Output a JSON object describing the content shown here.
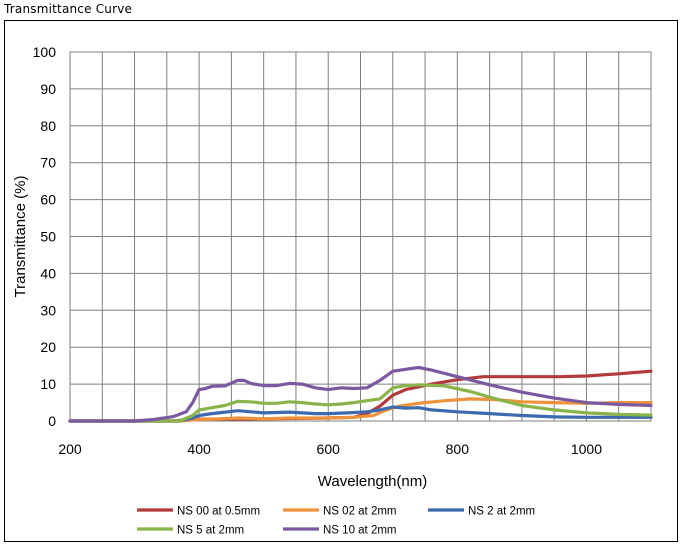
{
  "page_title": "Transmittance Curve",
  "chart_data": {
    "type": "line",
    "title": "",
    "xlabel": "Wavelength(nm)",
    "ylabel": "Transmittance (%)",
    "xlim": [
      200,
      1100
    ],
    "ylim": [
      0,
      100
    ],
    "xticks": [
      200,
      400,
      600,
      800,
      1000
    ],
    "yticks": [
      0,
      10,
      20,
      30,
      40,
      50,
      60,
      70,
      80,
      90,
      100
    ],
    "x_grid_step": 50,
    "grid": true,
    "legend_position": "bottom",
    "series": [
      {
        "name": "NS 00 at 0.5mm",
        "color": "#b23a3a",
        "points": [
          [
            200,
            0
          ],
          [
            360,
            0
          ],
          [
            380,
            0.3
          ],
          [
            400,
            0.5
          ],
          [
            500,
            0.6
          ],
          [
            600,
            0.8
          ],
          [
            640,
            1
          ],
          [
            660,
            2
          ],
          [
            680,
            4
          ],
          [
            700,
            7
          ],
          [
            720,
            8.5
          ],
          [
            760,
            10
          ],
          [
            800,
            11.2
          ],
          [
            840,
            12
          ],
          [
            900,
            12
          ],
          [
            960,
            12
          ],
          [
            1000,
            12.2
          ],
          [
            1050,
            12.8
          ],
          [
            1100,
            13.5
          ]
        ]
      },
      {
        "name": "NS 02 at 2mm",
        "color": "#f0913c",
        "points": [
          [
            200,
            0
          ],
          [
            370,
            0
          ],
          [
            390,
            0.3
          ],
          [
            420,
            0.5
          ],
          [
            460,
            0.8
          ],
          [
            500,
            0.6
          ],
          [
            540,
            0.8
          ],
          [
            600,
            0.8
          ],
          [
            640,
            1
          ],
          [
            670,
            1.5
          ],
          [
            690,
            3
          ],
          [
            710,
            4
          ],
          [
            740,
            4.8
          ],
          [
            780,
            5.5
          ],
          [
            820,
            6
          ],
          [
            860,
            5.8
          ],
          [
            900,
            5.2
          ],
          [
            950,
            5
          ],
          [
            1000,
            4.8
          ],
          [
            1050,
            5
          ],
          [
            1100,
            5
          ]
        ]
      },
      {
        "name": "NS 2 at 2mm",
        "color": "#3d6aae",
        "points": [
          [
            200,
            0
          ],
          [
            370,
            0
          ],
          [
            390,
            0.8
          ],
          [
            400,
            1.5
          ],
          [
            420,
            2
          ],
          [
            460,
            2.8
          ],
          [
            480,
            2.5
          ],
          [
            500,
            2.2
          ],
          [
            540,
            2.4
          ],
          [
            560,
            2.2
          ],
          [
            580,
            2
          ],
          [
            600,
            2
          ],
          [
            630,
            2.2
          ],
          [
            660,
            2.5
          ],
          [
            680,
            3
          ],
          [
            700,
            3.8
          ],
          [
            720,
            3.5
          ],
          [
            740,
            3.6
          ],
          [
            760,
            3
          ],
          [
            800,
            2.5
          ],
          [
            850,
            2
          ],
          [
            900,
            1.5
          ],
          [
            950,
            1.1
          ],
          [
            1000,
            1
          ],
          [
            1100,
            1
          ]
        ]
      },
      {
        "name": "NS 5 at 2mm",
        "color": "#8ab34a",
        "points": [
          [
            200,
            0
          ],
          [
            370,
            0
          ],
          [
            390,
            1.5
          ],
          [
            400,
            3
          ],
          [
            420,
            3.6
          ],
          [
            440,
            4.2
          ],
          [
            460,
            5.3
          ],
          [
            480,
            5.2
          ],
          [
            500,
            4.8
          ],
          [
            520,
            4.8
          ],
          [
            540,
            5.2
          ],
          [
            560,
            5
          ],
          [
            580,
            4.6
          ],
          [
            600,
            4.4
          ],
          [
            620,
            4.6
          ],
          [
            640,
            5
          ],
          [
            660,
            5.5
          ],
          [
            680,
            6
          ],
          [
            700,
            9
          ],
          [
            720,
            9.6
          ],
          [
            740,
            9.8
          ],
          [
            780,
            9.5
          ],
          [
            820,
            8
          ],
          [
            860,
            6
          ],
          [
            900,
            4.2
          ],
          [
            950,
            3
          ],
          [
            1000,
            2.2
          ],
          [
            1050,
            1.8
          ],
          [
            1100,
            1.6
          ]
        ]
      },
      {
        "name": "NS 10 at 2mm",
        "color": "#7b59a0",
        "points": [
          [
            200,
            0
          ],
          [
            300,
            0
          ],
          [
            330,
            0.4
          ],
          [
            360,
            1.2
          ],
          [
            380,
            2.5
          ],
          [
            390,
            5
          ],
          [
            400,
            8.5
          ],
          [
            410,
            8.8
          ],
          [
            420,
            9.4
          ],
          [
            440,
            9.5
          ],
          [
            460,
            11
          ],
          [
            470,
            11
          ],
          [
            480,
            10.2
          ],
          [
            500,
            9.6
          ],
          [
            520,
            9.6
          ],
          [
            540,
            10.2
          ],
          [
            560,
            10
          ],
          [
            580,
            9
          ],
          [
            600,
            8.5
          ],
          [
            620,
            9
          ],
          [
            640,
            8.8
          ],
          [
            660,
            9
          ],
          [
            680,
            11
          ],
          [
            700,
            13.5
          ],
          [
            720,
            14
          ],
          [
            740,
            14.5
          ],
          [
            760,
            13.8
          ],
          [
            800,
            12
          ],
          [
            850,
            9.8
          ],
          [
            900,
            7.8
          ],
          [
            950,
            6.2
          ],
          [
            1000,
            5
          ],
          [
            1050,
            4.5
          ],
          [
            1100,
            4.2
          ]
        ]
      }
    ]
  }
}
